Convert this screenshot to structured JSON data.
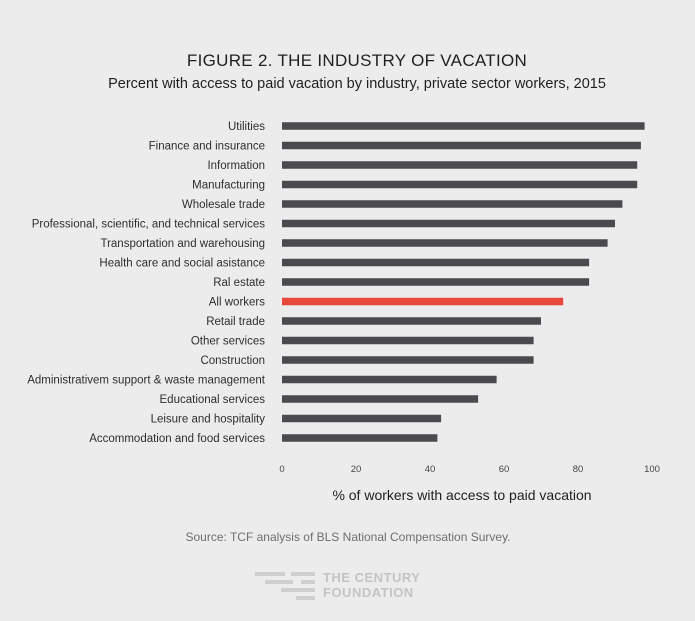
{
  "title": "FIGURE 2. THE INDUSTRY OF VACATION",
  "subtitle": "Percent with access to paid vacation by industry, private sector workers, 2015",
  "source": "Source: TCF analysis of BLS National Compensation Survey.",
  "logo": {
    "line1": "THE CENTURY",
    "line2": "FOUNDATION"
  },
  "colors": {
    "bar": "#4a4a4f",
    "highlight": "#e8483b",
    "background": "#ececec"
  },
  "chart_data": {
    "type": "bar",
    "orientation": "horizontal",
    "categories": [
      "Utilities",
      "Finance and insurance",
      "Information",
      "Manufacturing",
      "Wholesale trade",
      "Professional, scientific, and technical services",
      "Transportation and warehousing",
      "Health care and social asistance",
      "Ral estate",
      "All workers",
      "Retail trade",
      "Other services",
      "Construction",
      "Administrativem support & waste management",
      "Educational services",
      "Leisure and hospitality",
      "Accommodation and food services"
    ],
    "values": [
      98,
      97,
      96,
      96,
      92,
      90,
      88,
      83,
      83,
      76,
      70,
      68,
      68,
      58,
      53,
      43,
      42
    ],
    "highlight_category": "All workers",
    "xlabel": "% of workers with access to paid vacation",
    "ylabel": "",
    "xlim": [
      0,
      100
    ],
    "xticks": [
      0,
      20,
      40,
      60,
      80,
      100
    ],
    "grid": false,
    "legend": "none"
  }
}
